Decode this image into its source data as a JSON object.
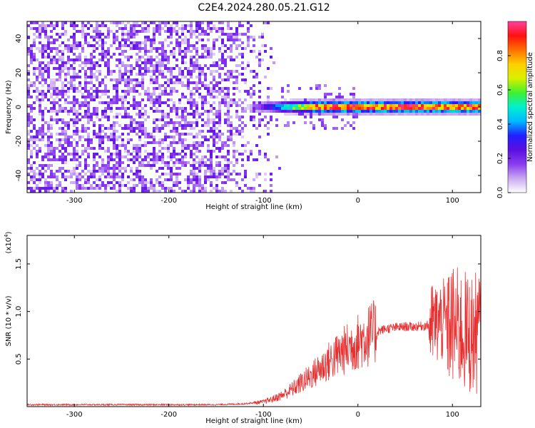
{
  "title": "C2E4.2024.280.05.21.G12",
  "colors": {
    "snr_line": "#e83030",
    "colormap": [
      "#ffffff",
      "#c9a8f0",
      "#8a3bef",
      "#5a10e0",
      "#2020ff",
      "#00b8ff",
      "#00f0d0",
      "#40f030",
      "#d8f000",
      "#ffd000",
      "#ff7000",
      "#ff1010",
      "#ff40a0"
    ]
  },
  "chart_data": [
    {
      "type": "heatmap",
      "subtype": "spectrogram",
      "xlabel": "Height of straight line (km)",
      "ylabel": "Frequency (Hz)",
      "xlim": [
        -350,
        130
      ],
      "ylim": [
        -50,
        50
      ],
      "x_ticks": [
        -300,
        -200,
        -100,
        0,
        100
      ],
      "y_ticks": [
        -40,
        -20,
        0,
        20,
        40
      ],
      "colorbar": {
        "label": "Normalized spectral amplitude",
        "range": [
          0,
          1
        ],
        "ticks": [
          0.0,
          0.2,
          0.4,
          0.6,
          0.8
        ]
      },
      "features": [
        {
          "description_region": "broadband noise",
          "x_range": [
            -350,
            -80
          ],
          "freq_range": [
            -50,
            50
          ],
          "typical_amplitude": 0.15
        },
        {
          "description_region": "signal band",
          "x_range": [
            -120,
            130
          ],
          "center_freq_hz": 0,
          "bandwidth_hz": 4,
          "peak_amplitude": 1.0
        }
      ]
    },
    {
      "type": "line",
      "xlabel": "Height of straight line (km)",
      "ylabel": "SNR (10 * v/v)",
      "y_scale_label": "(x10",
      "y_scale_exponent": "4",
      "xlim": [
        -350,
        130
      ],
      "ylim": [
        0,
        1.8
      ],
      "x_ticks": [
        -300,
        -200,
        -100,
        0,
        100
      ],
      "y_ticks": [
        0.5,
        1.0,
        1.5
      ],
      "y_tick_labels": [
        "0.5",
        "1.0",
        "1.5"
      ],
      "series": [
        {
          "x": [
            -350,
            -300,
            -250,
            -200,
            -150,
            -120,
            -100,
            -90,
            -80,
            -70,
            -60,
            -50,
            -40,
            -30,
            -20,
            -10,
            0,
            10,
            20,
            30,
            40,
            50,
            60,
            70,
            80,
            90,
            100,
            110,
            120,
            130
          ],
          "values": [
            0.02,
            0.02,
            0.02,
            0.02,
            0.02,
            0.03,
            0.05,
            0.08,
            0.12,
            0.18,
            0.25,
            0.32,
            0.4,
            0.48,
            0.55,
            0.62,
            0.68,
            0.74,
            0.79,
            0.82,
            0.83,
            0.84,
            0.84,
            0.85,
            0.86,
            0.9,
            0.85,
            0.8,
            0.75,
            0.8
          ]
        }
      ]
    }
  ]
}
